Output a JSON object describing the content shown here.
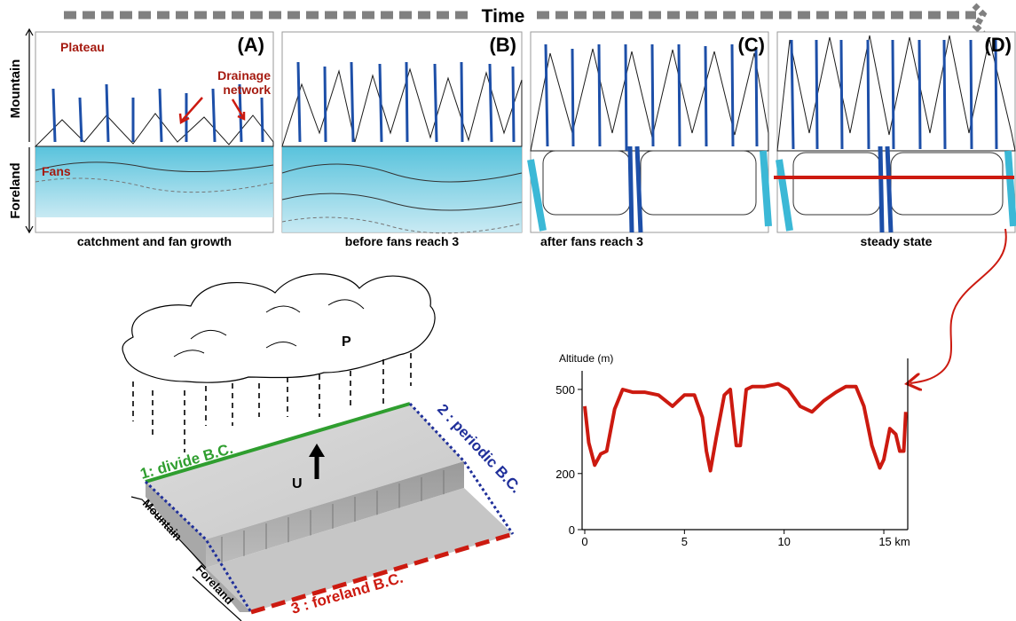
{
  "time_label": "Time",
  "axis_side": {
    "mountain": "Mountain",
    "foreland": "Foreland"
  },
  "panels": [
    {
      "letter": "(A)",
      "caption": "catchment and fan growth"
    },
    {
      "letter": "(B)",
      "caption": "before fans reach 3"
    },
    {
      "letter": "(C)",
      "caption": "after fans reach 3"
    },
    {
      "letter": "(D)",
      "caption": "steady state"
    }
  ],
  "panel_a_labels": {
    "plateau": "Plateau",
    "drainage": "Drainage",
    "network": "network",
    "fans": "Fans"
  },
  "model": {
    "precip": "P",
    "uplift": "U",
    "bc_divide": "1: divide B.C.",
    "bc_periodic": "2 : periodic B.C.",
    "bc_foreland": "3 : foreland B.C.",
    "side_mountain": "Mountain",
    "side_foreland": "Foreland"
  },
  "colors": {
    "river": "#cc1a10",
    "divide": "#2f9e2f",
    "periodic": "#1f2f9a",
    "foreland": "#cc1a10",
    "fan": "#3bb8d6"
  },
  "chart_data": {
    "type": "line",
    "title": "",
    "ylabel": "Altitude (m)",
    "xlabel": "",
    "x_ticks": [
      "0",
      "5",
      "10",
      "15 km"
    ],
    "x_tick_values": [
      0,
      5,
      10,
      15
    ],
    "y_ticks": [
      "0",
      "200",
      "500"
    ],
    "y_tick_values": [
      0,
      200,
      500
    ],
    "xlim": [
      0,
      16.2
    ],
    "ylim": [
      0,
      560
    ],
    "series": [
      {
        "name": "",
        "x": [
          0,
          0.2,
          0.5,
          0.8,
          1.1,
          1.5,
          1.9,
          2.4,
          3.0,
          3.7,
          4.4,
          5.0,
          5.5,
          5.9,
          6.1,
          6.3,
          6.6,
          7.0,
          7.3,
          7.6,
          7.8,
          8.1,
          8.4,
          9.0,
          9.7,
          10.2,
          10.8,
          11.4,
          12.0,
          12.6,
          13.1,
          13.6,
          14.0,
          14.4,
          14.8,
          15.0,
          15.3,
          15.6,
          15.8,
          16.0,
          16.1
        ],
        "y": [
          440,
          310,
          230,
          270,
          280,
          430,
          500,
          490,
          490,
          480,
          440,
          480,
          480,
          400,
          280,
          210,
          330,
          480,
          500,
          300,
          300,
          500,
          510,
          510,
          520,
          500,
          440,
          420,
          460,
          490,
          510,
          510,
          440,
          300,
          220,
          250,
          360,
          340,
          280,
          280,
          420
        ]
      }
    ]
  }
}
